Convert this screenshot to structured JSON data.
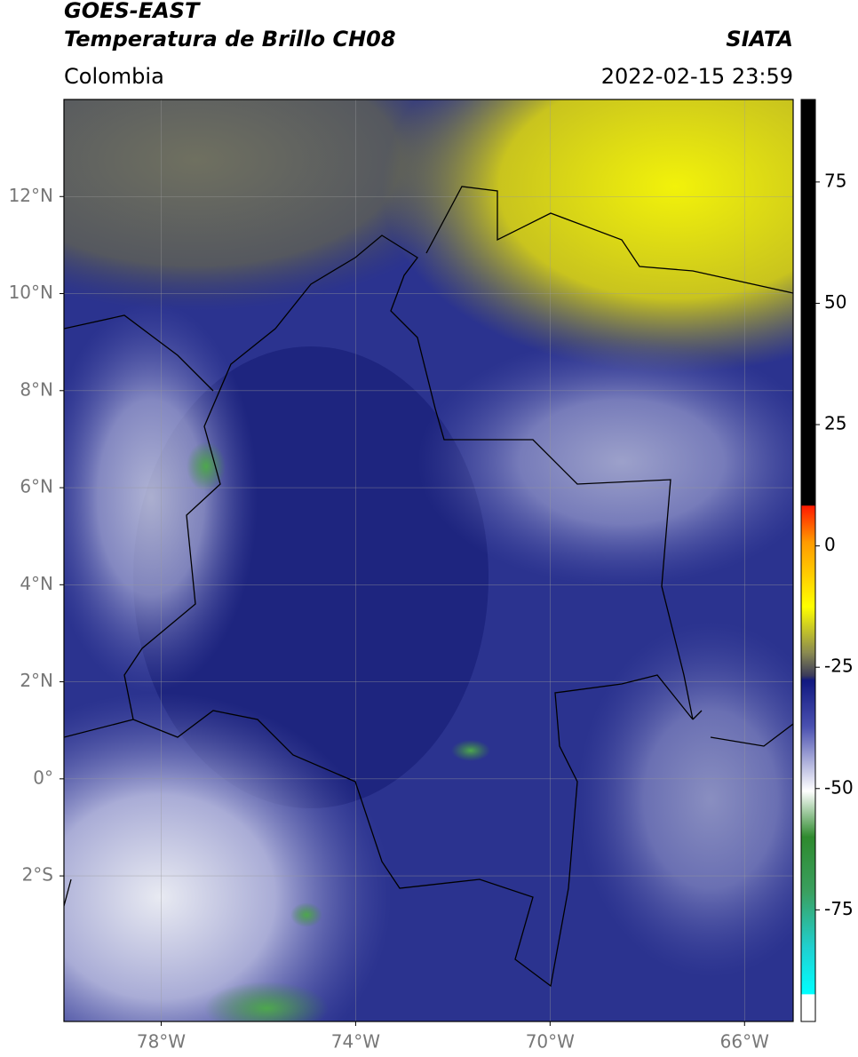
{
  "header": {
    "title": "GOES-EAST",
    "subtitle": "Temperatura de Brillo CH08",
    "region": "Colombia",
    "source": "SIATA",
    "datetime": "2022-02-15 23:59"
  },
  "map": {
    "xlim": [
      -80,
      -65
    ],
    "ylim": [
      -5,
      14
    ],
    "lat_ticks": [
      {
        "value": 12,
        "label": "12°N"
      },
      {
        "value": 10,
        "label": "10°N"
      },
      {
        "value": 8,
        "label": "8°N"
      },
      {
        "value": 6,
        "label": "6°N"
      },
      {
        "value": 4,
        "label": "4°N"
      },
      {
        "value": 2,
        "label": "2°N"
      },
      {
        "value": 0,
        "label": "0°"
      },
      {
        "value": -2,
        "label": "2°S"
      }
    ],
    "lon_ticks": [
      {
        "value": -78,
        "label": "78°W"
      },
      {
        "value": -74,
        "label": "74°W"
      },
      {
        "value": -70,
        "label": "70°W"
      },
      {
        "value": -66,
        "label": "66°W"
      }
    ]
  },
  "colorbar": {
    "lim": [
      -98,
      92
    ],
    "ticks": [
      75,
      50,
      25,
      0,
      -25,
      -50,
      -75
    ]
  }
}
